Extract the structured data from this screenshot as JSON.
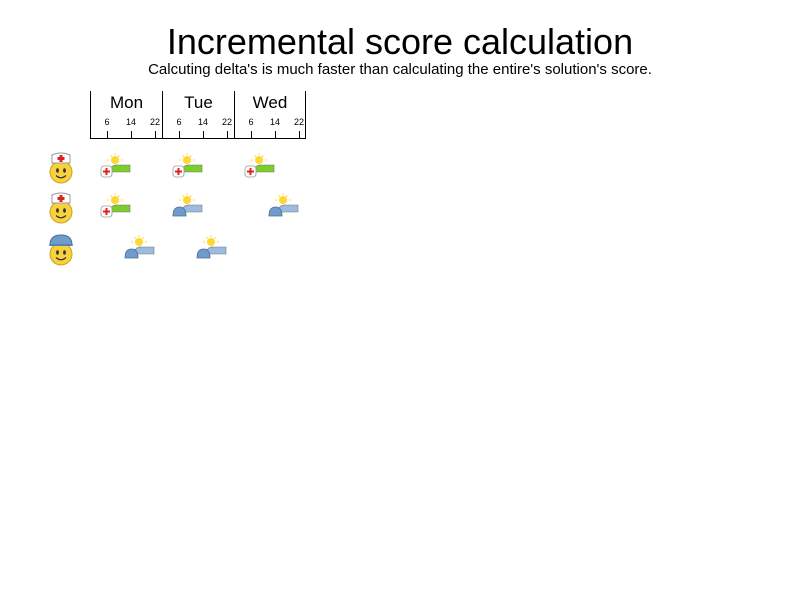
{
  "title": "Incremental score calculation",
  "subtitle": "Calcuting delta's is much faster than calculating the entire's solution's score.",
  "days": [
    {
      "label": "Mon",
      "ticks": [
        "6",
        "14",
        "22"
      ]
    },
    {
      "label": "Tue",
      "ticks": [
        "6",
        "14",
        "22"
      ]
    },
    {
      "label": "Wed",
      "ticks": [
        "6",
        "14",
        "22"
      ]
    }
  ],
  "employees": [
    {
      "icon": "nurse-icon",
      "shifts": [
        {
          "day": 0,
          "type": "nurse"
        },
        {
          "day": 1,
          "type": "nurse"
        },
        {
          "day": 2,
          "type": "nurse"
        }
      ]
    },
    {
      "icon": "nurse-icon",
      "shifts": [
        {
          "day": 0,
          "type": "nurse"
        },
        {
          "day": 1,
          "type": "worker"
        },
        {
          "day": 2,
          "type": "worker-late"
        }
      ]
    },
    {
      "icon": "worker-icon",
      "shifts": [
        {
          "day": 0,
          "type": "worker-late"
        },
        {
          "day": 1,
          "type": "worker-late"
        }
      ]
    }
  ],
  "colors": {
    "face": "#f7d23c",
    "nurse_cap": "#ffffff",
    "nurse_cross": "#e02020",
    "hard_hat": "#6e9ccc",
    "sun": "#ffd733",
    "hill_green": "#7ccf2a",
    "hill_blue": "#9cbbe0"
  }
}
